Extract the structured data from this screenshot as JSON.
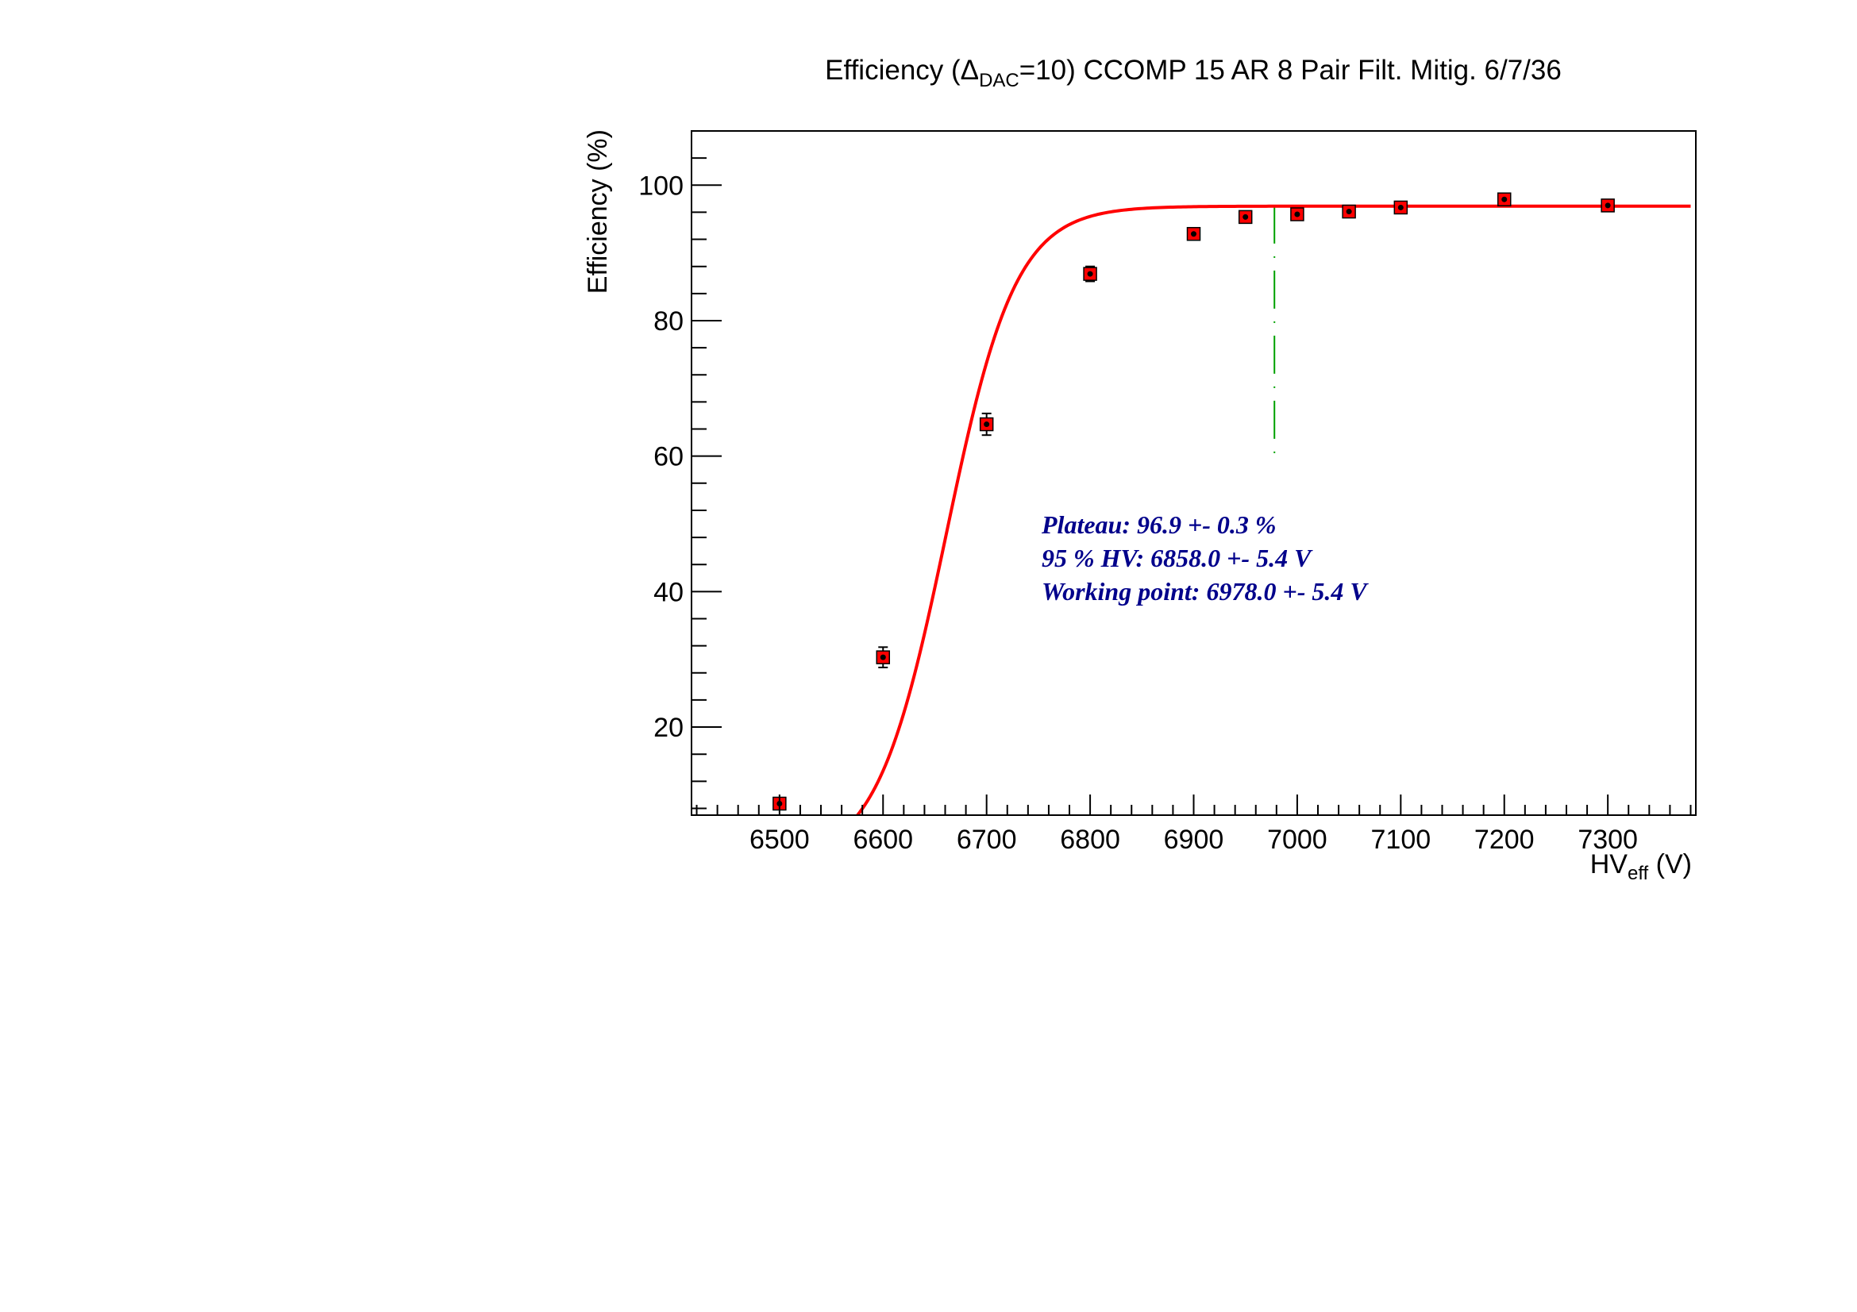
{
  "chart_data": {
    "type": "scatter",
    "title": {
      "pre": "Efficiency (",
      "delta": "Δ",
      "sub": "DAC",
      "post": "=10) CCOMP 15 AR 8 Pair Filt. Mitig. 6/7/36"
    },
    "xlabel": {
      "main": "HV",
      "sub": "eff",
      "post": " (V)"
    },
    "ylabel": "Efficiency (%)",
    "xlim": [
      6415,
      7385
    ],
    "ylim": [
      7,
      108
    ],
    "x_ticks": [
      6500,
      6600,
      6700,
      6800,
      6900,
      7000,
      7100,
      7200,
      7300
    ],
    "x_tick_labels": [
      "6500",
      "6600",
      "6700",
      "6800",
      "6900",
      "7000",
      "7100",
      "7200",
      "7300"
    ],
    "y_ticks": [
      20,
      40,
      60,
      80,
      100
    ],
    "y_tick_labels": [
      "20",
      "40",
      "60",
      "80",
      "100"
    ],
    "series": [
      {
        "type": "scatter",
        "x": [
          6500,
          6600,
          6700,
          6800,
          6900,
          6950,
          7000,
          7050,
          7100,
          7200,
          7300
        ],
        "y": [
          8.7,
          30.3,
          64.7,
          86.9,
          92.8,
          95.3,
          95.7,
          96.1,
          96.7,
          97.9,
          97.0
        ],
        "err": [
          0.6,
          1.5,
          1.6,
          1.1,
          0.8,
          0.6,
          0.6,
          0.5,
          0.5,
          0.4,
          0.4
        ],
        "color": "#ff0000"
      }
    ],
    "fit": {
      "type": "sigmoid",
      "plateau": 96.9,
      "midpoint": 6661,
      "slope": 0.0298,
      "x_range": [
        6480,
        7380
      ],
      "color": "#ff0000"
    },
    "working_point_line": {
      "x": 6978,
      "y_range": [
        60,
        97
      ],
      "color": "#00a000"
    },
    "annotation": {
      "lines": [
        "Plateau: 96.9 +- 0.3 %",
        "95 % HV: 6858.0 +- 5.4 V",
        "Working point: 6978.0 +- 5.4 V"
      ],
      "color": "#00008b"
    },
    "colors": {
      "axis": "#000000",
      "markers": "#ff0000",
      "fit": "#ff0000",
      "wp_line": "#00a000",
      "annotation": "#00008b"
    }
  }
}
